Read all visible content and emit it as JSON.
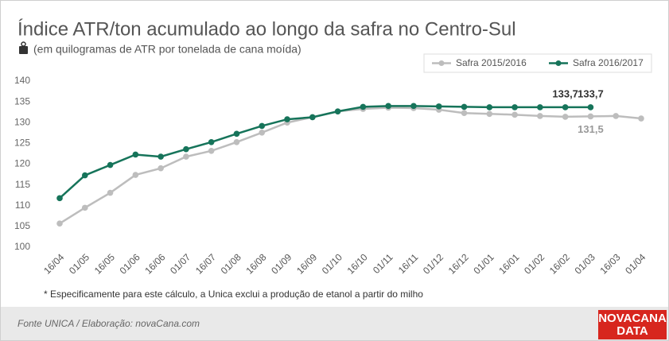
{
  "chart_data": {
    "type": "line",
    "title": "Índice ATR/ton acumulado ao longo da safra no Centro-Sul",
    "subtitle": "(em quilogramas de ATR por tonelada de cana moída)",
    "categories": [
      "16/04",
      "01/05",
      "16/05",
      "01/06",
      "16/06",
      "01/07",
      "16/07",
      "01/08",
      "16/08",
      "01/09",
      "16/09",
      "01/10",
      "16/10",
      "01/11",
      "16/11",
      "01/12",
      "16/12",
      "01/01",
      "16/01",
      "01/02",
      "16/02",
      "01/03",
      "16/03",
      "01/04"
    ],
    "series": [
      {
        "name": "Safra 2015/2016",
        "color": "#bdbdbd",
        "values": [
          105.7,
          109.5,
          113.1,
          117.4,
          119.0,
          121.8,
          123.2,
          125.3,
          127.6,
          130.0,
          131.3,
          132.7,
          133.3,
          133.6,
          133.5,
          133.1,
          132.3,
          132.1,
          131.9,
          131.6,
          131.4,
          131.5,
          131.6,
          131.0
        ],
        "value_labels": [
          null,
          null,
          null,
          null,
          null,
          null,
          null,
          null,
          null,
          null,
          null,
          null,
          null,
          null,
          null,
          null,
          null,
          null,
          null,
          null,
          null,
          "131,5",
          null,
          null
        ]
      },
      {
        "name": "Safra 2016/2017",
        "color": "#16745a",
        "values": [
          111.8,
          117.3,
          119.8,
          122.3,
          121.8,
          123.6,
          125.3,
          127.3,
          129.2,
          130.8,
          131.3,
          132.7,
          133.8,
          134.0,
          134.0,
          133.9,
          133.8,
          133.7,
          133.7,
          133.7,
          133.7,
          133.7,
          null,
          null
        ],
        "value_labels": [
          null,
          null,
          null,
          null,
          null,
          null,
          null,
          null,
          null,
          null,
          null,
          null,
          null,
          null,
          null,
          null,
          null,
          null,
          null,
          null,
          "133,7",
          "133,7",
          null,
          null
        ]
      }
    ],
    "ylim": [
      100,
      140
    ],
    "yticks": [
      100,
      105,
      110,
      115,
      120,
      125,
      130,
      135,
      140
    ],
    "grid": false,
    "legend": "top-right",
    "note": "* Especificamente para este cálculo, a Unica exclui a produção de etanol a partir do milho",
    "source": "Fonte UNICA / Elaboração: novaCana.com",
    "logo": [
      "NOVACANA",
      "DATA"
    ]
  }
}
